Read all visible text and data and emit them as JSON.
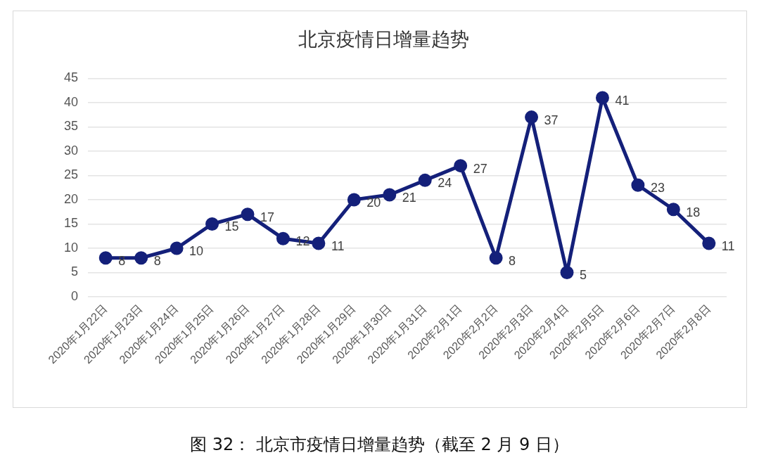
{
  "chart_data": {
    "type": "line",
    "title": "北京疫情日增量趋势",
    "categories": [
      "2020年1月22日",
      "2020年1月23日",
      "2020年1月24日",
      "2020年1月25日",
      "2020年1月26日",
      "2020年1月27日",
      "2020年1月28日",
      "2020年1月29日",
      "2020年1月30日",
      "2020年1月31日",
      "2020年2月1日",
      "2020年2月2日",
      "2020年2月3日",
      "2020年2月4日",
      "2020年2月5日",
      "2020年2月6日",
      "2020年2月7日",
      "2020年2月8日"
    ],
    "series": [
      {
        "color": "#14207a",
        "values": [
          8,
          8,
          10,
          15,
          17,
          12,
          11,
          20,
          21,
          24,
          27,
          8,
          37,
          5,
          41,
          23,
          18,
          11
        ]
      }
    ],
    "ylim": [
      0,
      45
    ],
    "yticks": [
      0,
      5,
      10,
      15,
      20,
      25,
      30,
      35,
      40,
      45
    ],
    "grid": "y",
    "marker": "circle",
    "line_style": "solid",
    "data_labels": true,
    "annotations": [
      "图 32： 北京市疫情日增量趋势（截至 2 月 9 日）"
    ]
  }
}
